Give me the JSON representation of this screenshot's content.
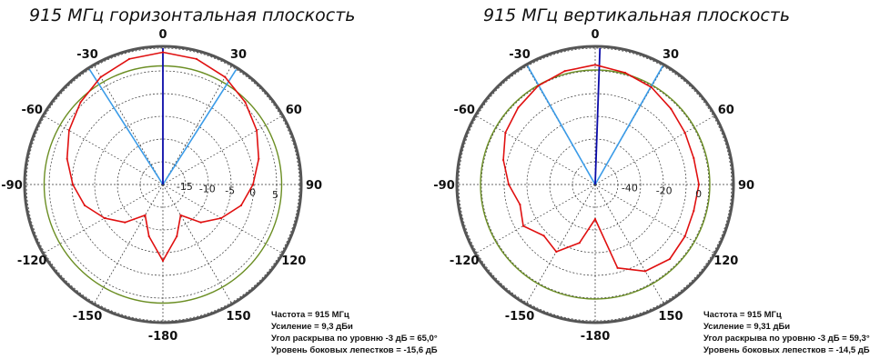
{
  "chart_data": [
    {
      "type": "polar",
      "title": "915 МГц горизонтальная плоскость",
      "angle_labels": [
        "0",
        "30",
        "60",
        "90",
        "120",
        "150",
        "-180",
        "-150",
        "-120",
        "-90",
        "-60",
        "-30"
      ],
      "radial_tick_labels": [
        "-15",
        "-10",
        "-5",
        "0",
        "5"
      ],
      "radial_range": [
        -20,
        10
      ],
      "grid": true,
      "beamwidth_lines_deg": [
        -32.5,
        32.5
      ],
      "main_direction_deg": 0,
      "reference_level": -3,
      "pattern": {
        "angles_deg": [
          0,
          15,
          30,
          45,
          60,
          75,
          90,
          105,
          120,
          135,
          150,
          165,
          180,
          195,
          210,
          225,
          240,
          255,
          270,
          285,
          300,
          315,
          330,
          345
        ],
        "values": [
          9.3,
          8.8,
          7.5,
          5.8,
          4,
          2,
          0,
          -2,
          -5,
          -8,
          -12,
          -8,
          -3,
          -8,
          -12,
          -8,
          -5,
          -2,
          0,
          2,
          4,
          5.8,
          7.5,
          8.8
        ]
      },
      "info": {
        "frequency": "Частота = 915 МГц",
        "gain": "Усиление = 9,3 дБи",
        "beamwidth": "Угол раскрыва по уровню -3 дБ = 65,0°",
        "sidelobe": "Уровень боковых лепестков = -15,6 дБ"
      },
      "colors": {
        "pattern": "#e01010",
        "reference": "#6b8e23",
        "main_beam": "#0a0aa8",
        "beam_lines": "#3a9be8",
        "outer_ring": "#555555"
      }
    },
    {
      "type": "polar",
      "title": "915 МГц вертикальная плоскость",
      "angle_labels": [
        "0",
        "30",
        "60",
        "90",
        "120",
        "150",
        "-180",
        "-150",
        "-120",
        "-90",
        "-60",
        "-30"
      ],
      "radial_tick_labels": [
        "-40",
        "-20",
        "0"
      ],
      "radial_range": [
        -60,
        20
      ],
      "grid": true,
      "beamwidth_lines_deg": [
        -29.65,
        29.65
      ],
      "main_direction_deg": 2,
      "reference_level": -3,
      "pattern": {
        "angles_deg": [
          0,
          15,
          30,
          45,
          60,
          75,
          90,
          105,
          120,
          135,
          150,
          165,
          180,
          195,
          210,
          225,
          240,
          255,
          270,
          285,
          300,
          315,
          330,
          345
        ],
        "values": [
          9.31,
          7,
          5,
          2,
          0,
          -1,
          0,
          -1,
          0,
          1,
          -2,
          -10,
          -40,
          -25,
          -15,
          -18,
          -12,
          -15,
          -10,
          -5,
          0,
          3,
          6,
          8
        ]
      },
      "info": {
        "frequency": "Частота = 915 МГц",
        "gain": "Усиление = 9,31 дБи",
        "beamwidth": "Угол раскрыва по уровню -3 дБ = 59,3°",
        "sidelobe": "Уровень боковых лепестков = -14,5 дБ"
      },
      "colors": {
        "pattern": "#e01010",
        "reference": "#6b8e23",
        "main_beam": "#0a0aa8",
        "beam_lines": "#3a9be8",
        "outer_ring": "#555555"
      }
    }
  ]
}
